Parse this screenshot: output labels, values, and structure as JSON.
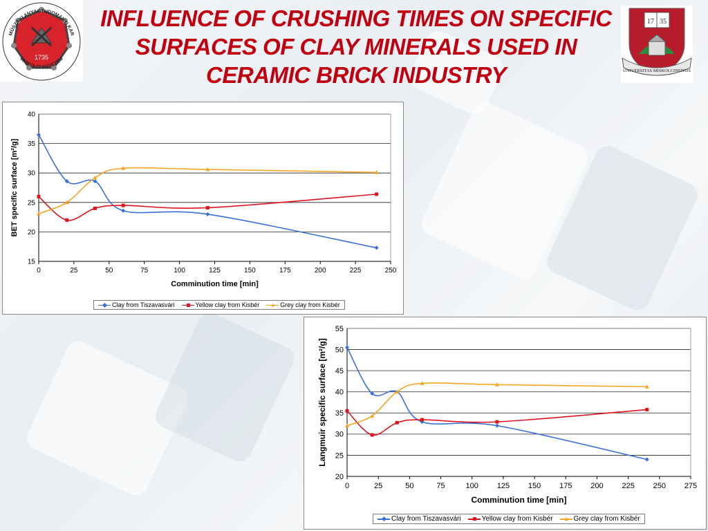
{
  "title": "INFLUENCE OF CRUSHING TIMES ON SPECIFIC SURFACES OF CLAY MINERALS USED IN CERAMIC BRICK INDUSTRY",
  "logos": {
    "left": {
      "text_top": "MŰSZAKI ANYAGTUDOMÁNYI KAR",
      "text_bottom": "MISKOLCI EGYETEM",
      "year": "1735"
    },
    "right": {
      "year_left": "17",
      "year_right": "35",
      "ribbon": "UNIVERSITAS MISKOLCINENSIS"
    }
  },
  "colors": {
    "blue": "#3a6fd8",
    "red": "#e0141e",
    "orange": "#f5a623",
    "title": "#c00010"
  },
  "chart_data": [
    {
      "type": "line",
      "xlabel": "Comminution time [min]",
      "ylabel": "BET specific surface [m²/g]",
      "xlim": [
        0,
        250
      ],
      "ylim": [
        15,
        40
      ],
      "xticks": [
        "0",
        "25",
        "50",
        "75",
        "100",
        "125",
        "150",
        "175",
        "200",
        "225",
        "250"
      ],
      "yticks": [
        "15",
        "20",
        "25",
        "30",
        "35",
        "40"
      ],
      "grid": "horizontal",
      "legend": "bottom",
      "series": [
        {
          "name": "Clay from Tiszavasvári",
          "color": "#3a6fd8",
          "marker": "diamond",
          "x": [
            0,
            20,
            40,
            60,
            120,
            240
          ],
          "y": [
            36.5,
            28.6,
            28.6,
            23.6,
            23.0,
            17.3
          ]
        },
        {
          "name": "Yellow clay from Kisbér",
          "color": "#e0141e",
          "marker": "square",
          "x": [
            0,
            20,
            40,
            60,
            120,
            240
          ],
          "y": [
            26.0,
            22.0,
            24.0,
            24.5,
            24.1,
            26.4
          ]
        },
        {
          "name": "Grey clay from Kisbér",
          "color": "#f5a623",
          "marker": "triangle",
          "x": [
            0,
            20,
            40,
            60,
            120,
            240
          ],
          "y": [
            23.1,
            25.0,
            29.2,
            30.8,
            30.6,
            30.1
          ]
        }
      ]
    },
    {
      "type": "line",
      "xlabel": "Comminution time [min]",
      "ylabel": "Langmuir specific surface [m²/g]",
      "xlim": [
        0,
        275
      ],
      "ylim": [
        20,
        55
      ],
      "xticks": [
        "0",
        "25",
        "50",
        "75",
        "100",
        "125",
        "150",
        "175",
        "200",
        "225",
        "250",
        "275"
      ],
      "yticks": [
        "20",
        "25",
        "30",
        "35",
        "40",
        "45",
        "50",
        "55"
      ],
      "grid": "horizontal",
      "legend": "bottom",
      "series": [
        {
          "name": "Clay from Tiszavasvári",
          "color": "#3a6fd8",
          "marker": "diamond",
          "x": [
            0,
            20,
            40,
            60,
            120,
            240
          ],
          "y": [
            50.5,
            39.6,
            40.0,
            32.9,
            32.0,
            24.0
          ]
        },
        {
          "name": "Yellow clay from Kisbér",
          "color": "#e0141e",
          "marker": "square",
          "x": [
            0,
            20,
            40,
            60,
            120,
            240
          ],
          "y": [
            35.5,
            29.8,
            32.7,
            33.4,
            32.9,
            35.8
          ]
        },
        {
          "name": "Grey clay from Kisbér",
          "color": "#f5a623",
          "marker": "triangle",
          "x": [
            0,
            20,
            40,
            60,
            120,
            240
          ],
          "y": [
            32.0,
            34.3,
            40.0,
            42.0,
            41.7,
            41.2
          ]
        }
      ]
    }
  ]
}
